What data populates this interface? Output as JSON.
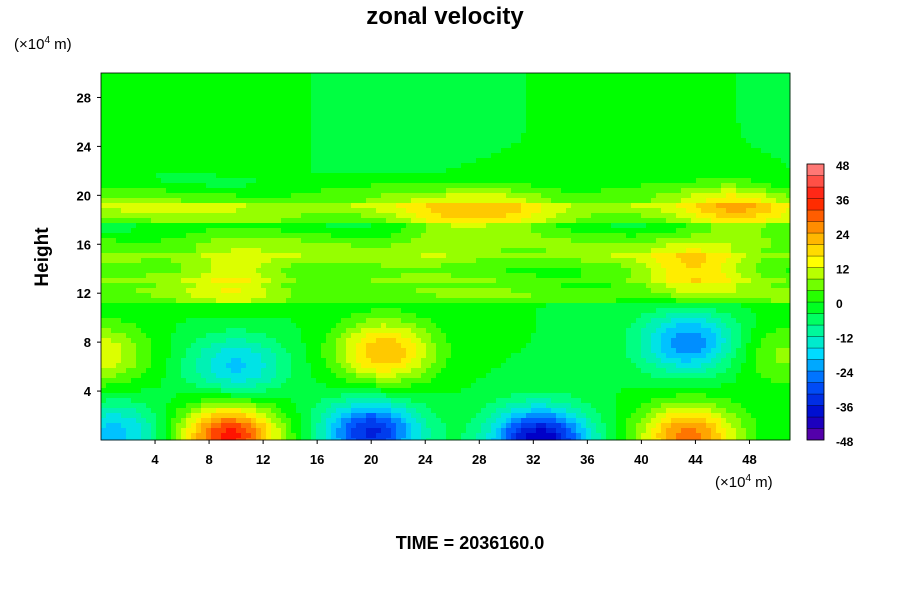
{
  "chart_data": {
    "type": "heatmap",
    "title": "zonal velocity",
    "ylabel": "Height",
    "xlabel": "",
    "x_unit_prefix": "(×10",
    "x_unit_exp": "4",
    "x_unit_suffix": " m)",
    "y_unit_prefix": "(×10",
    "y_unit_exp": "4",
    "y_unit_suffix": " m)",
    "xlim": [
      0,
      51
    ],
    "ylim": [
      0,
      30
    ],
    "x_ticks": [
      4,
      8,
      12,
      16,
      20,
      24,
      28,
      32,
      36,
      40,
      44,
      48
    ],
    "y_ticks": [
      4,
      8,
      12,
      16,
      20,
      24,
      28
    ],
    "colorbar": {
      "min": -48,
      "max": 48,
      "step": 4,
      "ticks": [
        48,
        36,
        24,
        12,
        0,
        -12,
        -24,
        -36,
        -48
      ]
    },
    "features": [
      {
        "x": 9.5,
        "y": 0.3,
        "value": 38
      },
      {
        "x": 20.0,
        "y": 0.6,
        "value": -33
      },
      {
        "x": 32.5,
        "y": 0.0,
        "value": -40
      },
      {
        "x": 43.5,
        "y": 0.3,
        "value": 30
      },
      {
        "x": 1.0,
        "y": 0.5,
        "value": -18
      },
      {
        "x": 21.0,
        "y": 7.2,
        "value": 24
      },
      {
        "x": 0.0,
        "y": 7.0,
        "value": 15
      },
      {
        "x": 10.0,
        "y": 6.0,
        "value": -17
      },
      {
        "x": 43.5,
        "y": 8.0,
        "value": -23
      },
      {
        "x": 50.5,
        "y": 7.0,
        "value": 9
      },
      {
        "x": 25.5,
        "y": 17.5,
        "value": 9
      },
      {
        "x": 44.0,
        "y": 14.0,
        "value": 13
      },
      {
        "x": 10.0,
        "y": 13.5,
        "value": 11
      },
      {
        "x": 30.0,
        "y": 19.0,
        "value": 8
      },
      {
        "x": 47.0,
        "y": 19.0,
        "value": 11
      }
    ],
    "time_label": "TIME = 2036160.0"
  }
}
